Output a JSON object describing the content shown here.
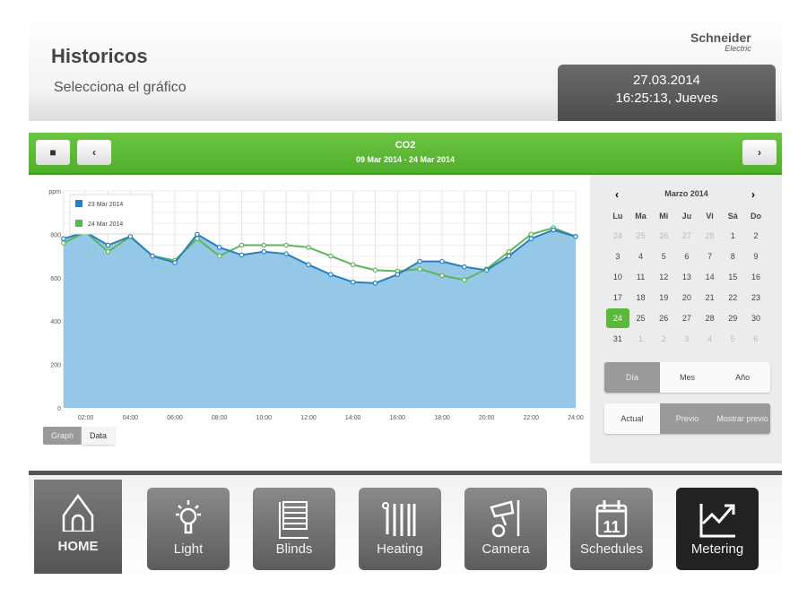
{
  "header": {
    "title": "Historicos",
    "subtitle": "Selecciona el gráfico",
    "logo": "Schneider",
    "logo_sub": "Electric",
    "date": "27.03.2014",
    "time": "16:25:13, Jueves"
  },
  "toolbar": {
    "title": "CO2",
    "range": "09 Mar 2014 - 24 Mar 2014",
    "menu_icon": "grid-icon",
    "prev_icon": "chevron-left-icon",
    "next_icon": "chevron-right-icon"
  },
  "chart_view": {
    "graph_label": "Graph",
    "data_label": "Data",
    "active": "Graph"
  },
  "chart_data": {
    "type": "area",
    "ylabel": "ppm",
    "ylim": [
      0,
      1000
    ],
    "yticks": [
      0,
      200,
      400,
      600,
      800
    ],
    "xlim": [
      1,
      24
    ],
    "xticks": [
      "02:00",
      "04:00",
      "06:00",
      "08:00",
      "10:00",
      "12:00",
      "14:00",
      "16:00",
      "18:00",
      "20:00",
      "22:00",
      "24:00"
    ],
    "x": [
      1,
      2,
      3,
      4,
      5,
      6,
      7,
      8,
      9,
      10,
      11,
      12,
      13,
      14,
      15,
      16,
      17,
      18,
      19,
      20,
      21,
      22,
      23,
      24
    ],
    "grid": true,
    "legend": "top-left",
    "series": [
      {
        "name": "23 Mar 2014",
        "color": "#2a7fc0",
        "fill": "#8fc4e6",
        "values": [
          780,
          810,
          750,
          790,
          700,
          670,
          800,
          740,
          705,
          720,
          710,
          660,
          615,
          580,
          575,
          615,
          675,
          675,
          650,
          635,
          700,
          780,
          820,
          790
        ]
      },
      {
        "name": "24 Mar 2014",
        "color": "#5db55a",
        "values": [
          760,
          810,
          720,
          790,
          700,
          680,
          780,
          700,
          750,
          750,
          750,
          740,
          700,
          660,
          635,
          630,
          640,
          610,
          590,
          640,
          720,
          800,
          830,
          790
        ]
      }
    ]
  },
  "calendar": {
    "month": "Marzo 2014",
    "weekdays": [
      "Lu",
      "Ma",
      "Mi",
      "Ju",
      "Vi",
      "Sá",
      "Do"
    ],
    "weeks": [
      [
        "24",
        "25",
        "26",
        "27",
        "28",
        "1",
        "2"
      ],
      [
        "3",
        "4",
        "5",
        "6",
        "7",
        "8",
        "9"
      ],
      [
        "10",
        "11",
        "12",
        "13",
        "14",
        "15",
        "16"
      ],
      [
        "17",
        "18",
        "19",
        "20",
        "21",
        "22",
        "23"
      ],
      [
        "24",
        "25",
        "26",
        "27",
        "28",
        "29",
        "30"
      ],
      [
        "31",
        "1",
        "2",
        "3",
        "4",
        "5",
        "6"
      ]
    ],
    "selected": "24"
  },
  "period": {
    "options": [
      "Día",
      "Mes",
      "Año"
    ],
    "active": "Día"
  },
  "compare": {
    "options": [
      "Actual",
      "Previo",
      "Mostrar previo"
    ],
    "active": [
      "Previo",
      "Mostrar previo"
    ]
  },
  "nav": [
    {
      "label": "HOME",
      "icon": "home-icon"
    },
    {
      "label": "Light",
      "icon": "bulb-icon"
    },
    {
      "label": "Blinds",
      "icon": "blinds-icon"
    },
    {
      "label": "Heating",
      "icon": "radiator-icon"
    },
    {
      "label": "Camera",
      "icon": "camera-icon"
    },
    {
      "label": "Schedules",
      "icon": "calendar-icon",
      "badge": "11"
    },
    {
      "label": "Metering",
      "icon": "chart-icon",
      "active": true
    }
  ]
}
